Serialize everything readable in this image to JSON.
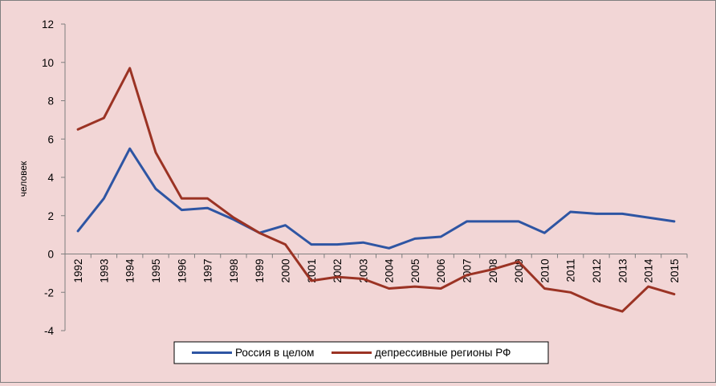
{
  "chart_data": {
    "type": "line",
    "title": "",
    "xlabel": "",
    "ylabel": "человек",
    "ylim": [
      -4,
      12
    ],
    "yticks": [
      -4,
      -2,
      0,
      2,
      4,
      6,
      8,
      10,
      12
    ],
    "grid": false,
    "legend_position": "bottom",
    "categories": [
      "1992",
      "1993",
      "1994",
      "1995",
      "1996",
      "1997",
      "1998",
      "1999",
      "2000",
      "2001",
      "2002",
      "2003",
      "2004",
      "2005",
      "2006",
      "2007",
      "2008",
      "2009",
      "2010",
      "2011",
      "2012",
      "2013",
      "2014",
      "2015"
    ],
    "series": [
      {
        "name": "Россия в целом",
        "color": "#2e55a3",
        "values": [
          1.2,
          2.9,
          5.5,
          3.4,
          2.3,
          2.4,
          1.8,
          1.1,
          1.5,
          0.5,
          0.5,
          0.6,
          0.3,
          0.8,
          0.9,
          1.7,
          1.7,
          1.7,
          1.1,
          2.2,
          2.1,
          2.1,
          1.9,
          1.7
        ]
      },
      {
        "name": "депрессивные регионы РФ",
        "color": "#9b3324",
        "values": [
          6.5,
          7.1,
          9.7,
          5.3,
          2.9,
          2.9,
          1.9,
          1.1,
          0.5,
          -1.4,
          -1.2,
          -1.3,
          -1.8,
          -1.7,
          -1.8,
          -1.1,
          -0.8,
          -0.4,
          -1.8,
          -2.0,
          -2.6,
          -3.0,
          -1.7,
          -2.1
        ]
      }
    ]
  }
}
